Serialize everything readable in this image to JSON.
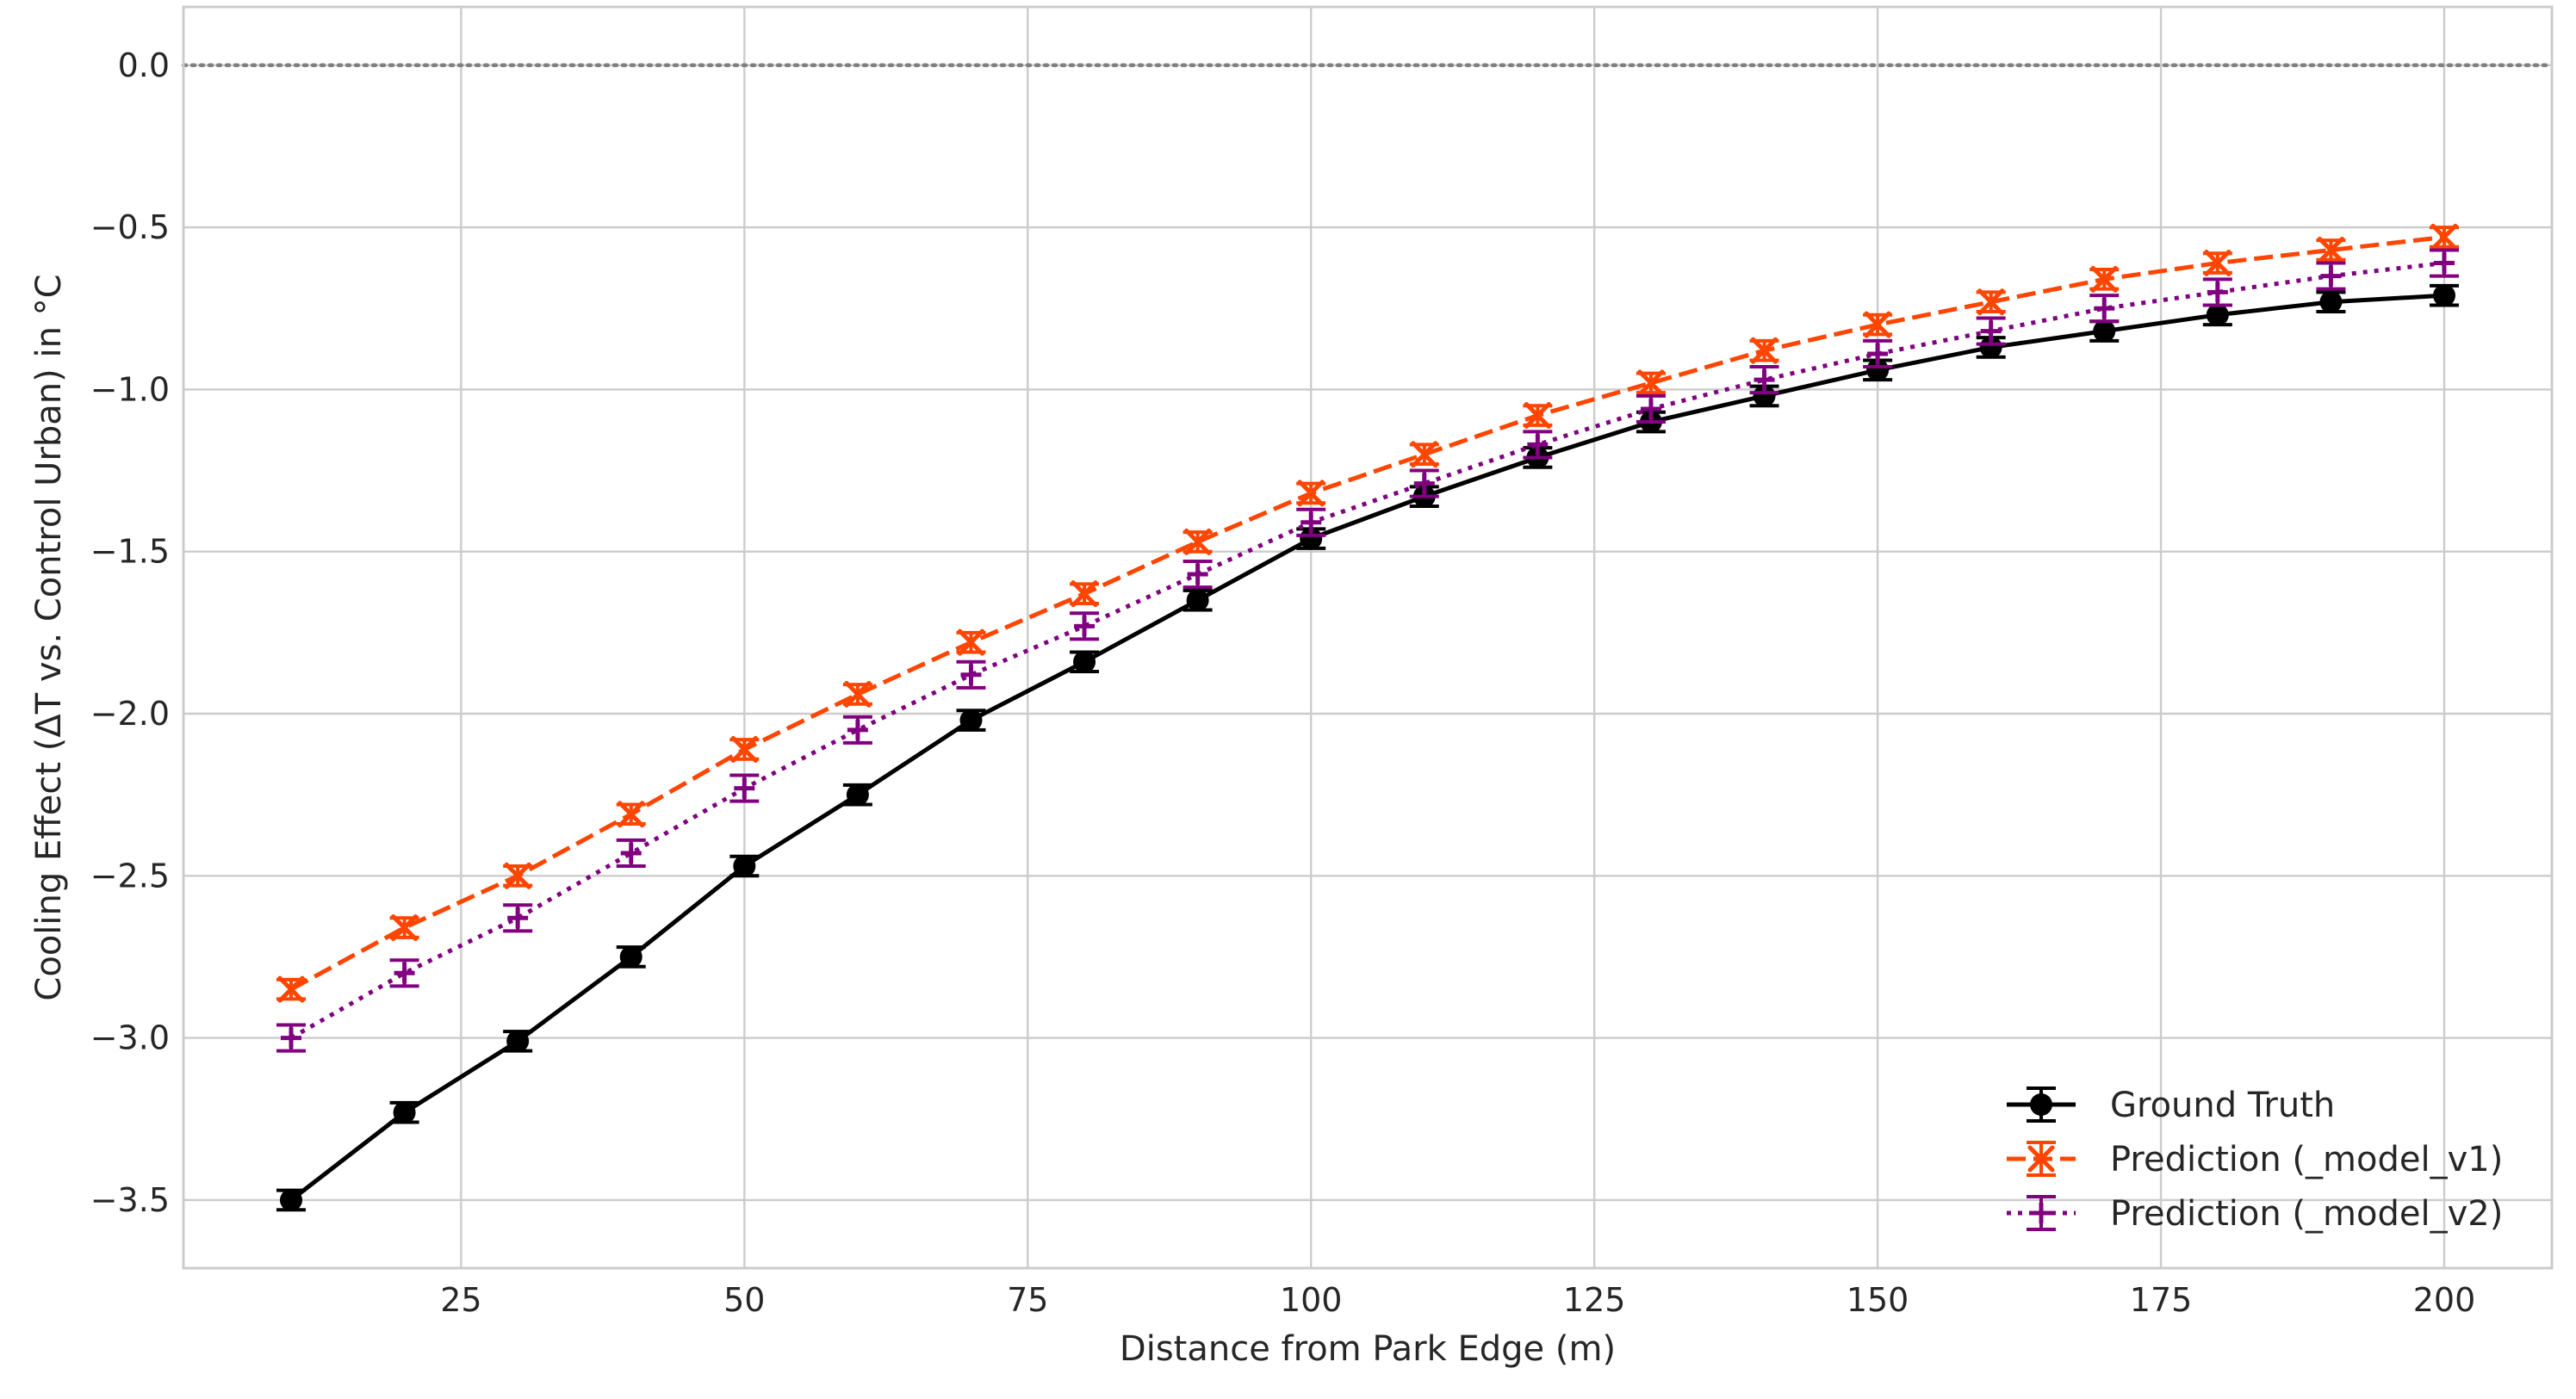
{
  "chart_data": {
    "type": "line",
    "title": "",
    "xlabel": "Distance from Park Edge (m)",
    "ylabel": "Cooling Effect (ΔT vs. Control Urban) in °C",
    "xlim": [
      0.5,
      209.5
    ],
    "ylim": [
      -3.71,
      0.18
    ],
    "xticks": [
      25,
      50,
      75,
      100,
      125,
      150,
      175,
      200
    ],
    "yticks": [
      0.0,
      -0.5,
      -1.0,
      -1.5,
      -2.0,
      -2.5,
      -3.0,
      -3.5
    ],
    "xtick_labels": [
      "25",
      "50",
      "75",
      "100",
      "125",
      "150",
      "175",
      "200"
    ],
    "ytick_labels": [
      "0.0",
      "−0.5",
      "−1.0",
      "−1.5",
      "−2.0",
      "−2.5",
      "−3.0",
      "−3.5"
    ],
    "grid": true,
    "legend_position": "lower-right",
    "reference_line": {
      "y": 0.0,
      "style": "dotted",
      "color": "#808080"
    },
    "x": [
      10,
      20,
      30,
      40,
      50,
      60,
      70,
      80,
      90,
      100,
      110,
      120,
      130,
      140,
      150,
      160,
      170,
      180,
      190,
      200
    ],
    "series": [
      {
        "name": "Ground Truth",
        "color": "#000000",
        "linestyle": "solid",
        "marker": "circle",
        "values": [
          -3.5,
          -3.23,
          -3.01,
          -2.75,
          -2.47,
          -2.25,
          -2.02,
          -1.84,
          -1.65,
          -1.46,
          -1.33,
          -1.21,
          -1.1,
          -1.02,
          -0.94,
          -0.87,
          -0.82,
          -0.77,
          -0.73,
          -0.71
        ],
        "errors": [
          0.03,
          0.03,
          0.03,
          0.03,
          0.03,
          0.03,
          0.03,
          0.03,
          0.03,
          0.03,
          0.03,
          0.03,
          0.03,
          0.03,
          0.03,
          0.03,
          0.03,
          0.03,
          0.03,
          0.03
        ]
      },
      {
        "name": "Prediction (_model_v1)",
        "color": "#ff4500",
        "linestyle": "dashed",
        "marker": "x",
        "values": [
          -2.85,
          -2.66,
          -2.5,
          -2.31,
          -2.11,
          -1.94,
          -1.78,
          -1.63,
          -1.47,
          -1.32,
          -1.2,
          -1.08,
          -0.98,
          -0.88,
          -0.8,
          -0.73,
          -0.66,
          -0.61,
          -0.57,
          -0.53
        ],
        "errors": [
          0.03,
          0.03,
          0.03,
          0.03,
          0.03,
          0.03,
          0.03,
          0.03,
          0.03,
          0.03,
          0.03,
          0.03,
          0.03,
          0.03,
          0.03,
          0.03,
          0.03,
          0.03,
          0.03,
          0.03
        ]
      },
      {
        "name": "Prediction (_model_v2)",
        "color": "#800080",
        "linestyle": "dotted",
        "marker": "plus",
        "values": [
          -3.0,
          -2.8,
          -2.63,
          -2.43,
          -2.23,
          -2.05,
          -1.88,
          -1.73,
          -1.57,
          -1.41,
          -1.29,
          -1.17,
          -1.06,
          -0.97,
          -0.89,
          -0.82,
          -0.75,
          -0.7,
          -0.65,
          -0.61
        ],
        "errors": [
          0.04,
          0.04,
          0.04,
          0.04,
          0.04,
          0.04,
          0.04,
          0.04,
          0.04,
          0.04,
          0.04,
          0.04,
          0.04,
          0.04,
          0.04,
          0.04,
          0.04,
          0.04,
          0.04,
          0.04
        ]
      }
    ]
  }
}
